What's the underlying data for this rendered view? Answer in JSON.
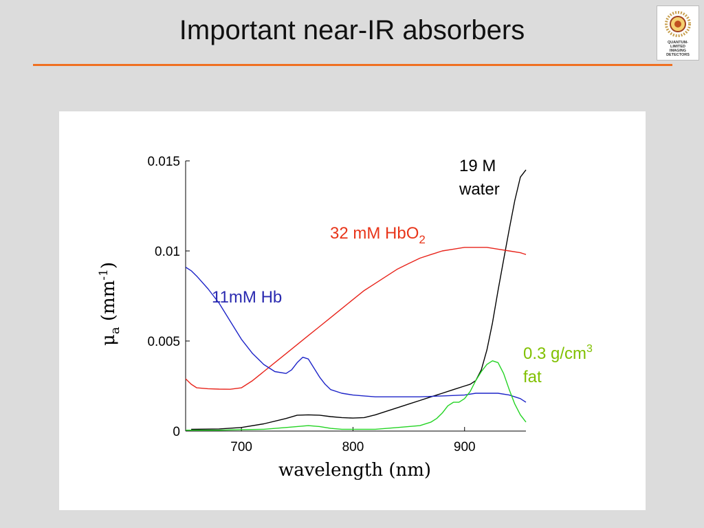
{
  "slide": {
    "title": "Important near-IR absorbers",
    "logo_lines": [
      "QUANTUM-",
      "LIMITED",
      "IMAGING",
      "DETECTORS"
    ]
  },
  "colors": {
    "accent_rule": "#f07020",
    "water": "#000000",
    "hbo2": "#e8231a",
    "hb": "#1c23c8",
    "fat": "#22d322",
    "hbo2_label": "#e8351a",
    "hb_label": "#2a2ab0",
    "fat_label": "#80c000"
  },
  "chart_data": {
    "type": "line",
    "title": "",
    "xlabel": "wavelength (nm)",
    "ylabel_base": "μ",
    "ylabel_sub": "a",
    "ylabel_unit": "(mm",
    "ylabel_sup": "-1",
    "ylabel_close": ")",
    "xlim": [
      650,
      955
    ],
    "ylim": [
      0,
      0.015
    ],
    "xticks": [
      700,
      800,
      900
    ],
    "xtick_labels": [
      "700",
      "800",
      "900"
    ],
    "yticks": [
      0,
      0.005,
      0.01,
      0.015
    ],
    "ytick_labels": [
      "0",
      "0.005",
      "0.01",
      "0.015"
    ],
    "grid": false,
    "series": [
      {
        "name": "19 M water",
        "color": "#000000",
        "annotation": [
          "19 M",
          "water"
        ],
        "x": [
          655,
          680,
          700,
          720,
          740,
          750,
          760,
          770,
          780,
          790,
          800,
          810,
          820,
          830,
          840,
          850,
          860,
          870,
          880,
          890,
          900,
          905,
          910,
          915,
          920,
          925,
          930,
          935,
          940,
          945,
          950,
          955
        ],
        "y": [
          0.0001,
          0.00012,
          0.0002,
          0.0004,
          0.0007,
          0.00088,
          0.0009,
          0.00088,
          0.0008,
          0.00075,
          0.00072,
          0.00075,
          0.0009,
          0.0011,
          0.0013,
          0.0015,
          0.0017,
          0.0019,
          0.0021,
          0.0023,
          0.0025,
          0.0026,
          0.0028,
          0.0034,
          0.0045,
          0.006,
          0.0078,
          0.0095,
          0.0112,
          0.0128,
          0.0141,
          0.0145
        ]
      },
      {
        "name": "32 mM HbO2",
        "color": "#e8231a",
        "annotation_main": "32 mM HbO",
        "annotation_sub": "2",
        "x": [
          650,
          655,
          660,
          670,
          680,
          690,
          700,
          710,
          720,
          730,
          740,
          750,
          760,
          770,
          780,
          790,
          800,
          810,
          820,
          830,
          840,
          850,
          860,
          870,
          880,
          890,
          900,
          910,
          920,
          930,
          940,
          950,
          955
        ],
        "y": [
          0.0029,
          0.0026,
          0.0024,
          0.00235,
          0.00233,
          0.00232,
          0.0024,
          0.0028,
          0.0033,
          0.0038,
          0.0043,
          0.0048,
          0.0053,
          0.0058,
          0.0063,
          0.0068,
          0.0073,
          0.0078,
          0.0082,
          0.0086,
          0.009,
          0.0093,
          0.0096,
          0.0098,
          0.01,
          0.0101,
          0.0102,
          0.0102,
          0.0102,
          0.0101,
          0.01,
          0.0099,
          0.0098
        ]
      },
      {
        "name": "11mM Hb",
        "color": "#1c23c8",
        "annotation": "11mM Hb",
        "x": [
          650,
          655,
          660,
          670,
          680,
          690,
          700,
          710,
          720,
          730,
          740,
          745,
          750,
          755,
          760,
          765,
          770,
          775,
          780,
          790,
          800,
          810,
          820,
          840,
          860,
          880,
          900,
          910,
          920,
          930,
          940,
          950,
          955
        ],
        "y": [
          0.0091,
          0.0089,
          0.0086,
          0.0079,
          0.0071,
          0.0061,
          0.0051,
          0.0043,
          0.0037,
          0.0033,
          0.0032,
          0.0034,
          0.0038,
          0.0041,
          0.004,
          0.0035,
          0.003,
          0.0026,
          0.0023,
          0.0021,
          0.002,
          0.00195,
          0.0019,
          0.0019,
          0.0019,
          0.00195,
          0.002,
          0.0021,
          0.0021,
          0.0021,
          0.002,
          0.0018,
          0.0016
        ]
      },
      {
        "name": "0.3 g/cm3 fat",
        "color": "#22d322",
        "annotation_main": "0.3 g/cm",
        "annotation_sup": "3",
        "annotation_line2": "fat",
        "x": [
          650,
          680,
          700,
          720,
          740,
          750,
          760,
          770,
          780,
          790,
          800,
          810,
          820,
          840,
          860,
          870,
          875,
          880,
          885,
          890,
          895,
          900,
          905,
          910,
          915,
          920,
          925,
          930,
          935,
          940,
          945,
          950,
          955
        ],
        "y": [
          5e-05,
          5e-05,
          8e-05,
          0.0001,
          0.0002,
          0.00025,
          0.0003,
          0.00025,
          0.00015,
          0.0001,
          0.0001,
          0.0001,
          0.0001,
          0.0002,
          0.0003,
          0.0005,
          0.0007,
          0.001,
          0.0014,
          0.0016,
          0.0016,
          0.0018,
          0.0022,
          0.0028,
          0.0033,
          0.0037,
          0.0039,
          0.0038,
          0.0032,
          0.0023,
          0.0015,
          0.0009,
          0.0005
        ]
      }
    ]
  }
}
